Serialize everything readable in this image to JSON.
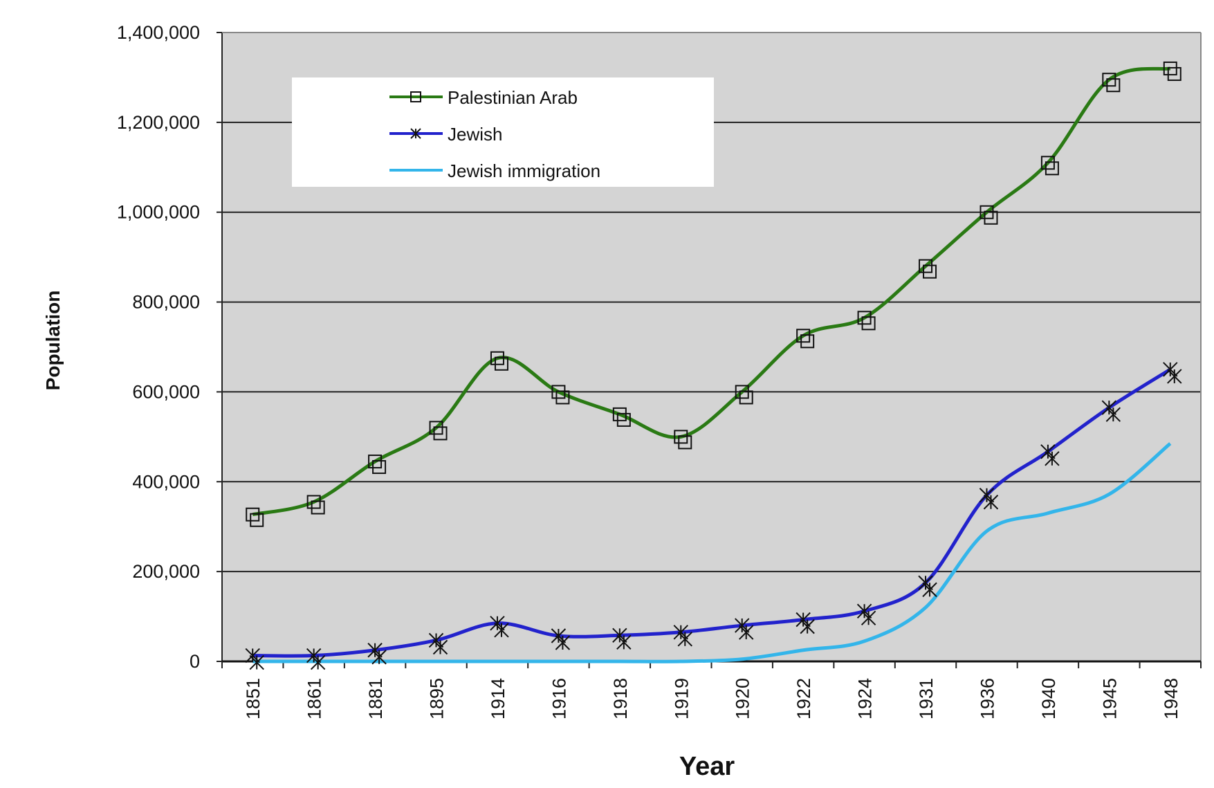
{
  "chart_data": {
    "type": "line",
    "title": "",
    "xlabel": "Year",
    "ylabel": "Population",
    "categories": [
      "1851",
      "1861",
      "1881",
      "1895",
      "1914",
      "1916",
      "1918",
      "1919",
      "1920",
      "1922",
      "1924",
      "1931",
      "1936",
      "1940",
      "1945",
      "1948"
    ],
    "ylim": [
      0,
      1400000
    ],
    "yticks": [
      0,
      200000,
      400000,
      600000,
      800000,
      1000000,
      1200000,
      1400000
    ],
    "ytick_labels": [
      "0",
      "200,000",
      "400,000",
      "600,000",
      "800,000",
      "1,000,000",
      "1,200,000",
      "1,400,000"
    ],
    "grid": true,
    "legend_position": "top-left",
    "series": [
      {
        "name": "Palestinian Arab",
        "color": "#2a7a14",
        "marker": "square",
        "values": [
          327000,
          355000,
          445000,
          520000,
          675000,
          600000,
          550000,
          500000,
          600000,
          725000,
          765000,
          880000,
          1000000,
          1110000,
          1295000,
          1320000
        ]
      },
      {
        "name": "Jewish",
        "color": "#2222cc",
        "marker": "asterisk",
        "values": [
          13000,
          13000,
          25000,
          47000,
          85000,
          57000,
          58000,
          65000,
          80000,
          93000,
          112000,
          175000,
          370000,
          467000,
          565000,
          650000
        ]
      },
      {
        "name": "Jewish immigration",
        "color": "#33b5ea",
        "marker": "none",
        "values": [
          0,
          0,
          0,
          0,
          0,
          0,
          0,
          0,
          5000,
          25000,
          45000,
          120000,
          290000,
          330000,
          372000,
          485000
        ]
      }
    ]
  }
}
